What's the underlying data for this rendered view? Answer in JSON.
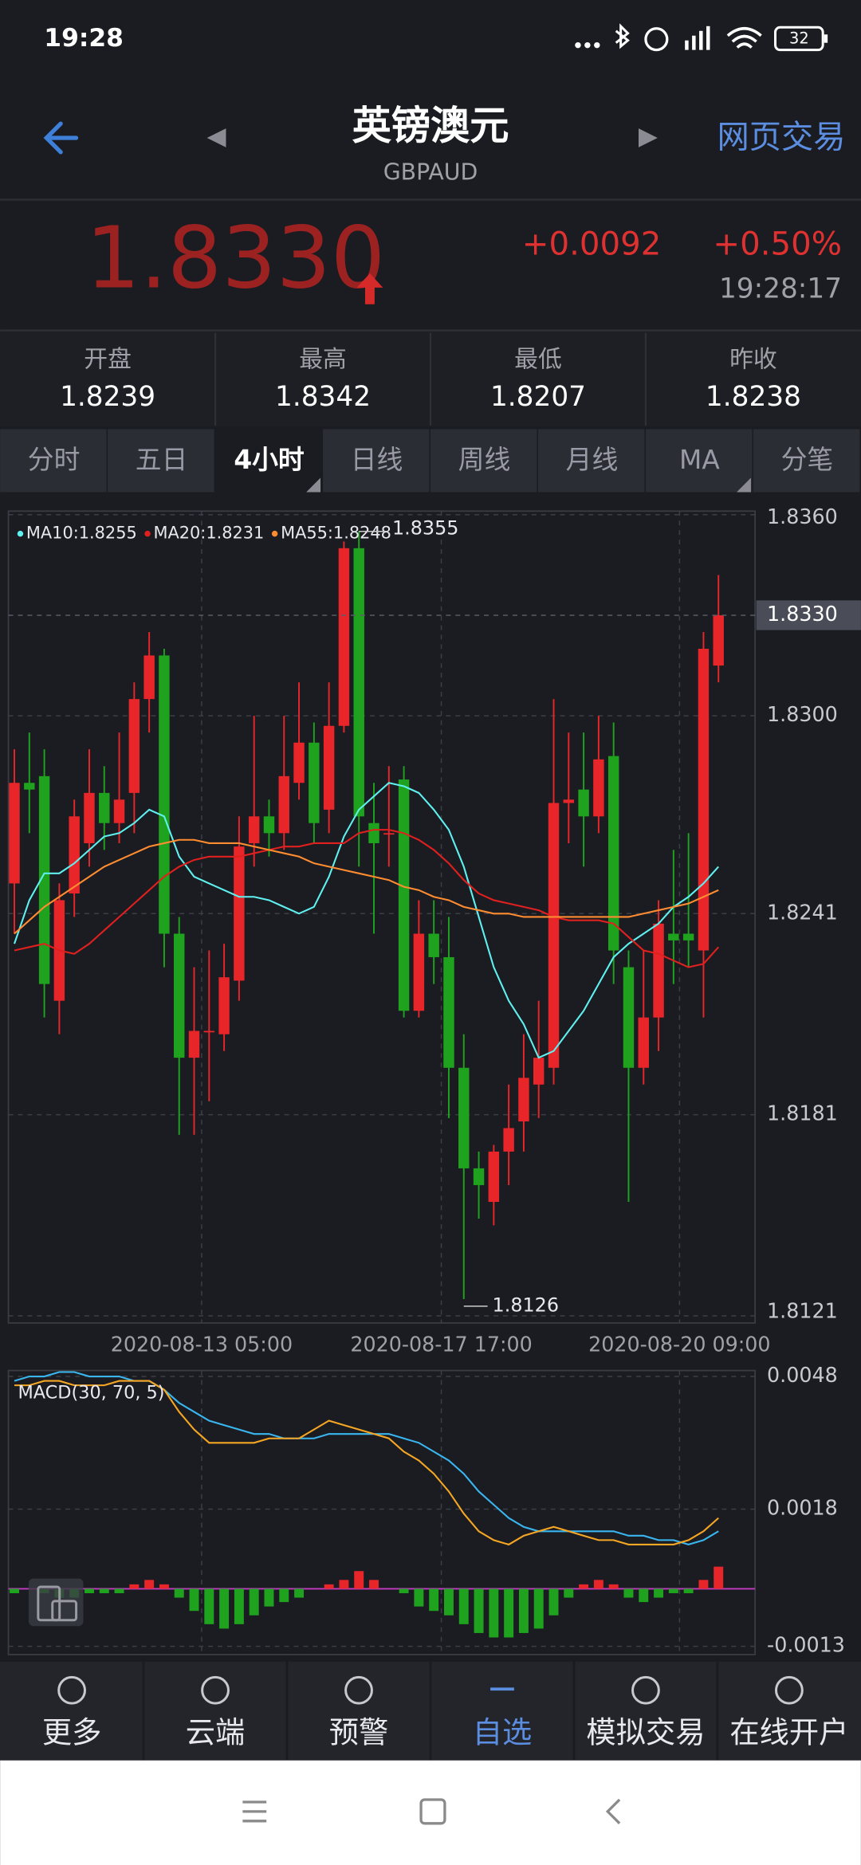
{
  "status_bar": {
    "time": "19:28",
    "battery": "32"
  },
  "header": {
    "title": "英镑澳元",
    "subtitle": "GBPAUD",
    "action": "网页交易"
  },
  "quote": {
    "price": "1.8330",
    "change": "+0.0092",
    "change_pct": "+0.50%",
    "time": "19:28:17"
  },
  "stats": [
    {
      "label": "开盘",
      "value": "1.8239"
    },
    {
      "label": "最高",
      "value": "1.8342"
    },
    {
      "label": "最低",
      "value": "1.8207"
    },
    {
      "label": "昨收",
      "value": "1.8238"
    }
  ],
  "tabs": [
    "分时",
    "五日",
    "4小时",
    "日线",
    "周线",
    "月线",
    "MA",
    "分笔"
  ],
  "active_tab": 2,
  "chart_data": [
    {
      "type": "candlestick",
      "up_color": "#e8262a",
      "down_color": "#1fa31f",
      "open": [
        1.825,
        1.828,
        1.8282,
        1.8215,
        1.8247,
        1.8262,
        1.8277,
        1.8268,
        1.8277,
        1.8305,
        1.8318,
        1.8235,
        1.8198,
        1.8206,
        1.8205,
        1.8221,
        1.8262,
        1.827,
        1.8265,
        1.828,
        1.8292,
        1.8272,
        1.8297,
        1.835,
        1.8268,
        1.8265,
        1.8281,
        1.8212,
        1.8235,
        1.8228,
        1.8195,
        1.8165,
        1.8155,
        1.817,
        1.8179,
        1.819,
        1.8195,
        1.8274,
        1.8278,
        1.827,
        1.8288,
        1.8225,
        1.8195,
        1.821,
        1.8235,
        1.8235,
        1.823,
        1.8315
      ],
      "high": [
        1.829,
        1.8295,
        1.829,
        1.825,
        1.8275,
        1.829,
        1.8285,
        1.8295,
        1.831,
        1.8325,
        1.832,
        1.824,
        1.8225,
        1.823,
        1.8232,
        1.827,
        1.83,
        1.8275,
        1.83,
        1.831,
        1.8298,
        1.831,
        1.8352,
        1.8355,
        1.828,
        1.8285,
        1.8285,
        1.8245,
        1.8245,
        1.824,
        1.8205,
        1.817,
        1.8172,
        1.819,
        1.8205,
        1.8215,
        1.8305,
        1.8295,
        1.8295,
        1.83,
        1.8298,
        1.823,
        1.823,
        1.8245,
        1.826,
        1.8265,
        1.8325,
        1.8342
      ],
      "low": [
        1.8235,
        1.8265,
        1.821,
        1.8205,
        1.824,
        1.8255,
        1.826,
        1.8262,
        1.8265,
        1.8295,
        1.8225,
        1.8175,
        1.8175,
        1.8185,
        1.82,
        1.8215,
        1.8255,
        1.8258,
        1.826,
        1.8275,
        1.8262,
        1.8265,
        1.8295,
        1.8255,
        1.8235,
        1.8255,
        1.821,
        1.821,
        1.822,
        1.818,
        1.8126,
        1.815,
        1.8148,
        1.816,
        1.817,
        1.818,
        1.819,
        1.8262,
        1.8255,
        1.8265,
        1.822,
        1.8155,
        1.819,
        1.82,
        1.822,
        1.8225,
        1.821,
        1.831
      ],
      "close": [
        1.828,
        1.8278,
        1.822,
        1.8245,
        1.827,
        1.8277,
        1.8268,
        1.8275,
        1.8305,
        1.8318,
        1.8235,
        1.8198,
        1.8206,
        1.8206,
        1.8222,
        1.8261,
        1.827,
        1.8265,
        1.8282,
        1.8292,
        1.8268,
        1.8297,
        1.835,
        1.827,
        1.8262,
        1.8265,
        1.8212,
        1.8235,
        1.8228,
        1.8195,
        1.8165,
        1.816,
        1.817,
        1.8177,
        1.8192,
        1.8198,
        1.8274,
        1.8275,
        1.827,
        1.8287,
        1.823,
        1.8195,
        1.821,
        1.8238,
        1.8233,
        1.8233,
        1.832,
        1.833
      ],
      "series": [
        {
          "name": "MA10:1.8255",
          "color": "#5ff0f0",
          "values": [
            1.8232,
            1.8245,
            1.8253,
            1.8253,
            1.8256,
            1.826,
            1.8264,
            1.8265,
            1.8268,
            1.8272,
            1.827,
            1.8258,
            1.8252,
            1.825,
            1.8248,
            1.8246,
            1.8246,
            1.8245,
            1.8243,
            1.8241,
            1.8243,
            1.8252,
            1.8264,
            1.8272,
            1.8276,
            1.828,
            1.8279,
            1.8277,
            1.8272,
            1.8266,
            1.8255,
            1.824,
            1.8225,
            1.8215,
            1.8208,
            1.8198,
            1.82,
            1.8206,
            1.8212,
            1.822,
            1.8228,
            1.8232,
            1.8235,
            1.8238,
            1.8243,
            1.8246,
            1.825,
            1.8255
          ]
        },
        {
          "name": "MA20:1.8231",
          "color": "#e0201f",
          "values": [
            1.823,
            1.8231,
            1.8232,
            1.823,
            1.8229,
            1.8232,
            1.8236,
            1.824,
            1.8244,
            1.8248,
            1.8252,
            1.8255,
            1.8257,
            1.8258,
            1.8258,
            1.8258,
            1.8259,
            1.826,
            1.8261,
            1.8261,
            1.8262,
            1.8262,
            1.8262,
            1.8265,
            1.8266,
            1.8266,
            1.8265,
            1.8263,
            1.826,
            1.8256,
            1.8251,
            1.8247,
            1.8245,
            1.8244,
            1.8243,
            1.8242,
            1.824,
            1.8239,
            1.8239,
            1.8239,
            1.8238,
            1.8234,
            1.823,
            1.8229,
            1.8227,
            1.8225,
            1.8226,
            1.8231
          ]
        },
        {
          "name": "MA55:1.8248",
          "color": "#ff8c30",
          "values": [
            1.8235,
            1.8239,
            1.8243,
            1.8246,
            1.8249,
            1.8252,
            1.8255,
            1.8257,
            1.8259,
            1.8261,
            1.8262,
            1.8263,
            1.8263,
            1.8262,
            1.8262,
            1.8262,
            1.8261,
            1.826,
            1.8259,
            1.8258,
            1.8256,
            1.8255,
            1.8254,
            1.8253,
            1.8252,
            1.8251,
            1.8249,
            1.8248,
            1.8246,
            1.8245,
            1.8243,
            1.8242,
            1.8241,
            1.8241,
            1.824,
            1.824,
            1.824,
            1.824,
            1.824,
            1.824,
            1.824,
            1.824,
            1.8241,
            1.8242,
            1.8243,
            1.8244,
            1.8246,
            1.8248
          ]
        }
      ],
      "ylim": [
        1.8121,
        1.836
      ],
      "yticks": [
        {
          "value": 1.836,
          "label": "1.8360"
        },
        {
          "value": 1.83,
          "label": "1.8300"
        },
        1.8241,
        1.8181,
        1.8121
      ],
      "xticks": [
        {
          "value": 12.5,
          "label": "2020-08-13 05:00"
        },
        {
          "value": 28.5,
          "label": "2020-08-17 17:00"
        },
        {
          "value": 44.4,
          "label": "2020-08-20 09:00"
        }
      ],
      "grid": true,
      "last_price": {
        "value": 1.833,
        "label": "1.8330"
      },
      "annotations": {
        "high": 1.8355,
        "low": 1.8126
      }
    },
    {
      "type": "macd",
      "title": "MACD(30, 70, 5)",
      "ylim": [
        -0.0013,
        0.0048
      ],
      "yticks": [
        0.0048,
        0.0018,
        -0.0013
      ],
      "zero_line_color": "#c23bc2",
      "up_color": "#e8262a",
      "down_color": "#1fa31f",
      "series": [
        {
          "color": "#39b6ef",
          "values": [
            0.0047,
            0.0048,
            0.0048,
            0.0049,
            0.0049,
            0.0048,
            0.0048,
            0.0048,
            0.0047,
            0.0047,
            0.0045,
            0.0042,
            0.004,
            0.0038,
            0.0037,
            0.0036,
            0.0035,
            0.0035,
            0.0034,
            0.0034,
            0.0034,
            0.0035,
            0.0035,
            0.0035,
            0.0035,
            0.0035,
            0.0034,
            0.0033,
            0.0031,
            0.0029,
            0.0026,
            0.0022,
            0.0019,
            0.0016,
            0.0014,
            0.0013,
            0.0013,
            0.0013,
            0.0013,
            0.0013,
            0.0013,
            0.0012,
            0.0012,
            0.0011,
            0.0011,
            0.001,
            0.0011,
            0.0013
          ]
        },
        {
          "color": "#f5a623",
          "values": [
            0.0046,
            0.0046,
            0.0047,
            0.0047,
            0.0046,
            0.0046,
            0.0046,
            0.0047,
            0.0047,
            0.0047,
            0.0045,
            0.004,
            0.0036,
            0.0033,
            0.0033,
            0.0033,
            0.0033,
            0.0034,
            0.0034,
            0.0034,
            0.0036,
            0.0038,
            0.0037,
            0.0036,
            0.0035,
            0.0034,
            0.0031,
            0.0029,
            0.0026,
            0.0022,
            0.0017,
            0.0013,
            0.0011,
            0.001,
            0.0012,
            0.0013,
            0.0014,
            0.0013,
            0.0012,
            0.0011,
            0.0011,
            0.001,
            0.001,
            0.001,
            0.001,
            0.0011,
            0.0013,
            0.0016
          ]
        }
      ],
      "histogram": [
        -0.0001,
        0,
        -0.0001,
        -0.0002,
        -0.0002,
        -0.0001,
        -0.0001,
        -0.0001,
        0.0001,
        0.0002,
        0.0001,
        -0.0002,
        -0.0005,
        -0.0008,
        -0.0009,
        -0.0008,
        -0.0006,
        -0.0004,
        -0.0003,
        -0.0002,
        0,
        0.0001,
        0.0002,
        0.0004,
        0.0002,
        0,
        -0.0001,
        -0.0004,
        -0.0005,
        -0.0006,
        -0.0008,
        -0.001,
        -0.0011,
        -0.0011,
        -0.001,
        -0.0009,
        -0.0006,
        -0.0002,
        0.0001,
        0.0002,
        0.0001,
        -0.0002,
        -0.0003,
        -0.0002,
        -0.0001,
        -0.0001,
        0.0002,
        0.0005
      ],
      "grid": true
    }
  ],
  "nav": [
    "更多",
    "云端",
    "预警",
    "自选",
    "模拟交易",
    "在线开户"
  ],
  "nav_active": 3
}
